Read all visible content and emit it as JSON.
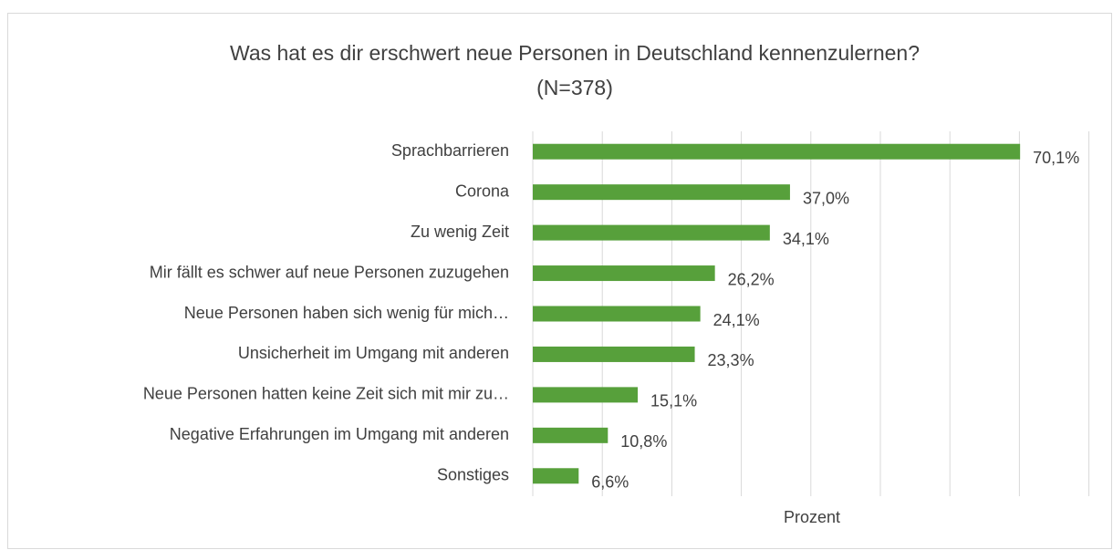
{
  "chart_data": {
    "type": "bar",
    "orientation": "horizontal",
    "title": "Was hat es dir erschwert neue Personen in Deutschland kennenzulernen?",
    "subtitle": "(N=378)",
    "x_label": "Prozent",
    "categories": [
      "Sprachbarrieren",
      "Corona",
      "Zu wenig Zeit",
      "Mir fällt es schwer auf neue Personen zuzugehen",
      "Neue Personen haben sich wenig für mich…",
      "Unsicherheit im Umgang mit anderen",
      "Neue Personen hatten keine Zeit sich mit mir zu…",
      "Negative Erfahrungen im Umgang mit anderen",
      "Sonstiges"
    ],
    "values": [
      70.1,
      37.0,
      34.1,
      26.2,
      24.1,
      23.3,
      15.1,
      10.8,
      6.6
    ],
    "value_labels": [
      "70,1%",
      "37,0%",
      "34,1%",
      "26,2%",
      "24,1%",
      "23,3%",
      "15,1%",
      "10,8%",
      "6,6%"
    ],
    "color": "#57a03b",
    "xlim": [
      0,
      80
    ],
    "xticks": [
      0,
      10,
      20,
      30,
      40,
      50,
      60,
      70,
      80
    ],
    "grid": true
  }
}
